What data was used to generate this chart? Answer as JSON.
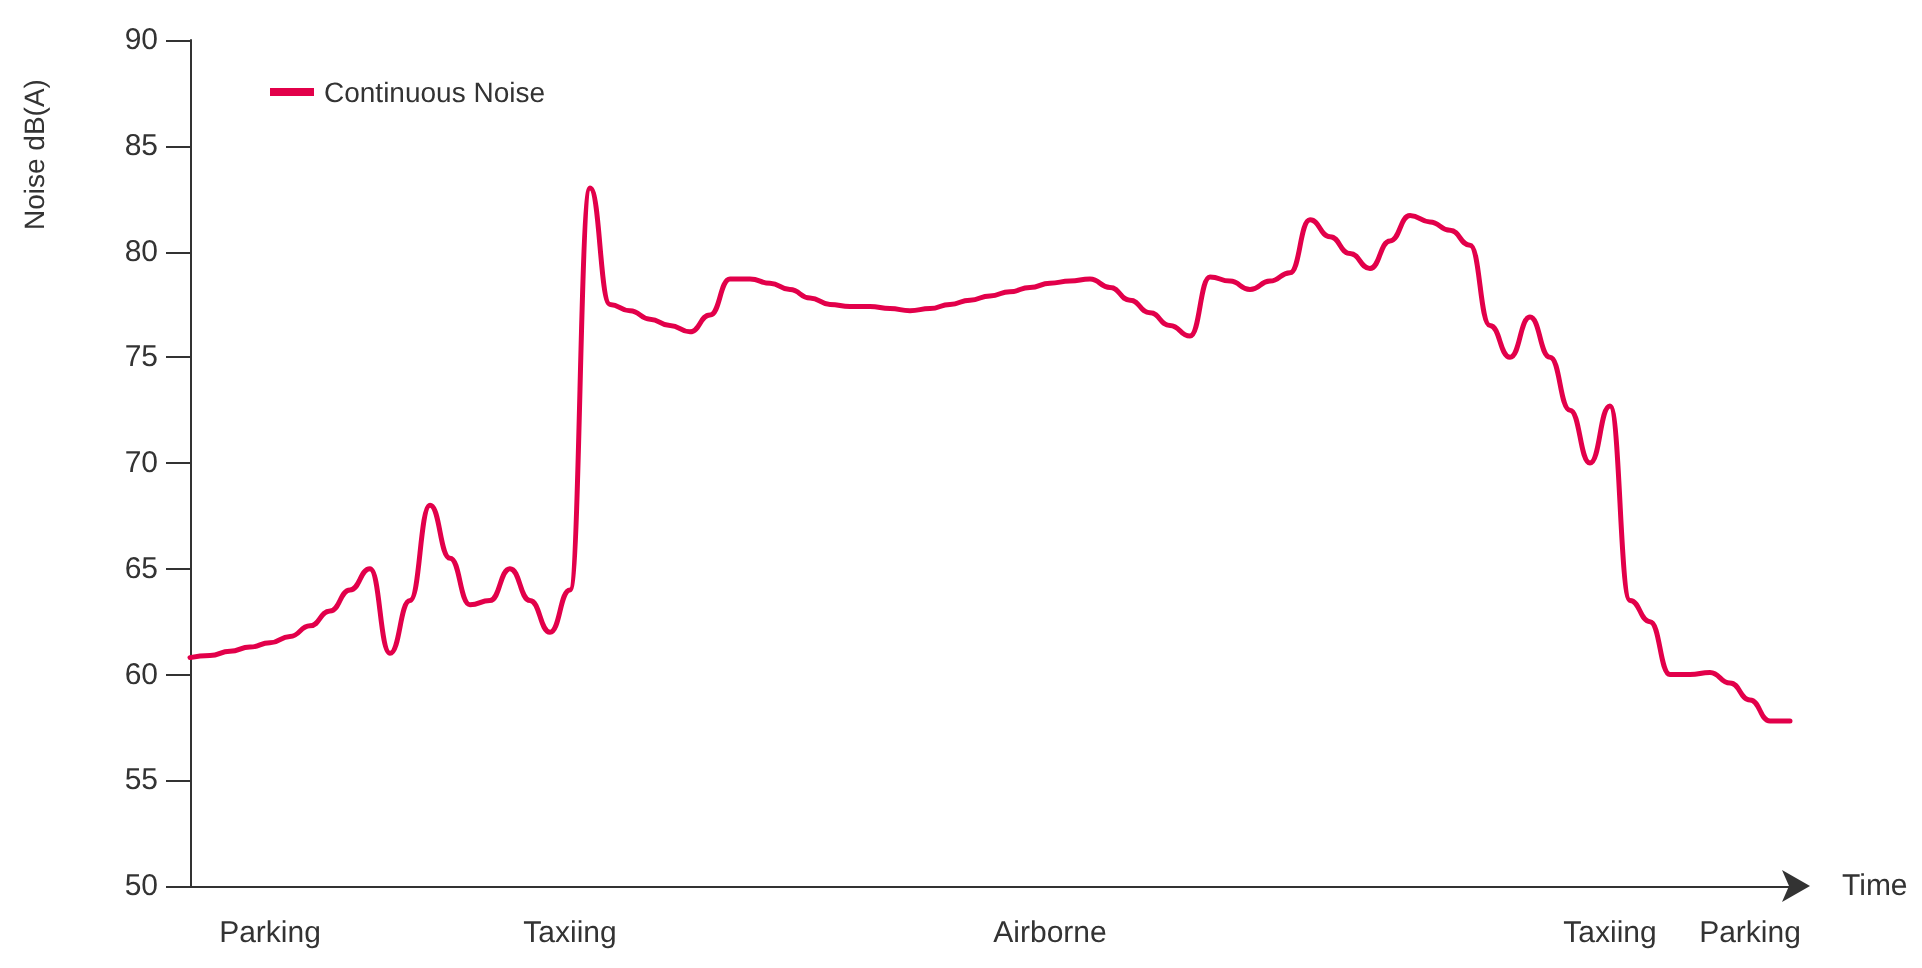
{
  "chart_data": {
    "type": "line",
    "xlabel": "Time",
    "ylabel": "Noise dB(A)",
    "categories": [
      null,
      null,
      null,
      null,
      "Parking",
      null,
      null,
      null,
      null,
      null,
      null,
      null,
      null,
      null,
      null,
      null,
      null,
      null,
      null,
      "Taxiing",
      null,
      null,
      null,
      null,
      null,
      null,
      null,
      null,
      null,
      null,
      null,
      null,
      null,
      null,
      null,
      null,
      null,
      null,
      null,
      null,
      null,
      null,
      null,
      "Airborne",
      null,
      null,
      null,
      null,
      null,
      null,
      null,
      null,
      null,
      null,
      null,
      null,
      null,
      null,
      null,
      null,
      null,
      null,
      null,
      null,
      null,
      null,
      null,
      null,
      null,
      null,
      null,
      "Taxiing",
      null,
      null,
      null,
      null,
      null,
      null,
      "Parking",
      null,
      null
    ],
    "series": [
      {
        "name": "Continuous Noise",
        "color": "#e2004a",
        "values": [
          60.8,
          60.9,
          61.1,
          61.3,
          61.5,
          61.8,
          62.3,
          63.0,
          64.0,
          65.0,
          61.0,
          63.5,
          68.0,
          65.5,
          63.3,
          63.5,
          65.0,
          63.5,
          62.0,
          64.0,
          83.0,
          77.5,
          77.2,
          76.8,
          76.5,
          76.2,
          77.0,
          78.7,
          78.7,
          78.5,
          78.2,
          77.8,
          77.5,
          77.4,
          77.4,
          77.3,
          77.2,
          77.3,
          77.5,
          77.7,
          77.9,
          78.1,
          78.3,
          78.5,
          78.6,
          78.7,
          78.3,
          77.7,
          77.1,
          76.5,
          76.0,
          78.8,
          78.6,
          78.2,
          78.6,
          79.0,
          81.5,
          80.7,
          79.9,
          79.2,
          80.5,
          81.7,
          81.4,
          81.0,
          80.3,
          76.5,
          75.0,
          76.9,
          75.0,
          72.5,
          70.0,
          72.7,
          63.5,
          62.5,
          60.0,
          60.0,
          60.1,
          59.6,
          58.8,
          57.8,
          57.8
        ]
      }
    ],
    "ylim": [
      50,
      90
    ],
    "yticks": [
      50,
      55,
      60,
      65,
      70,
      75,
      80,
      85,
      90
    ],
    "grid": false,
    "legend": "top left",
    "line_style": "solid"
  }
}
